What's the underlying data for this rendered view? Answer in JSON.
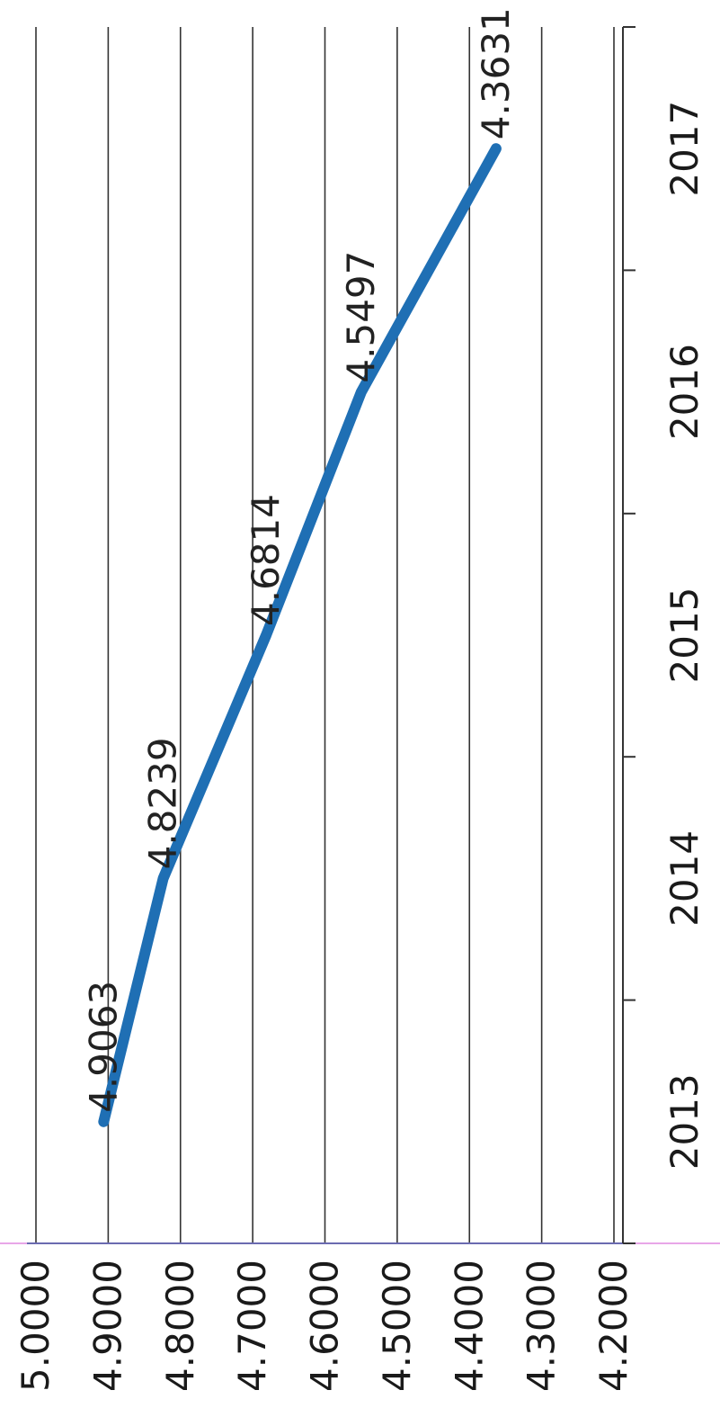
{
  "chart_data": {
    "type": "line",
    "orientation": "rotated-90-clockwise",
    "title": "",
    "xlabel": "",
    "ylabel": "",
    "categories": [
      "2013",
      "2014",
      "2015",
      "2016",
      "2017"
    ],
    "series": [
      {
        "values": [
          4.9063,
          4.8239,
          4.6814,
          4.5497,
          4.3631
        ],
        "data_labels": [
          "4.9063",
          "4.8239",
          "4.6814",
          "4.5497",
          "4.3631"
        ]
      }
    ],
    "y_ticks": [
      "5.0000",
      "4.9000",
      "4.8000",
      "4.7000",
      "4.6000",
      "4.5000",
      "4.4000",
      "4.3000",
      "4.2000"
    ],
    "ylim": [
      4.2,
      5.0
    ],
    "grid": true,
    "legend": "none",
    "colors": {
      "line": "#1f6fb4",
      "grid": "#333333",
      "baseline_accent": "#e8a6e8"
    }
  }
}
